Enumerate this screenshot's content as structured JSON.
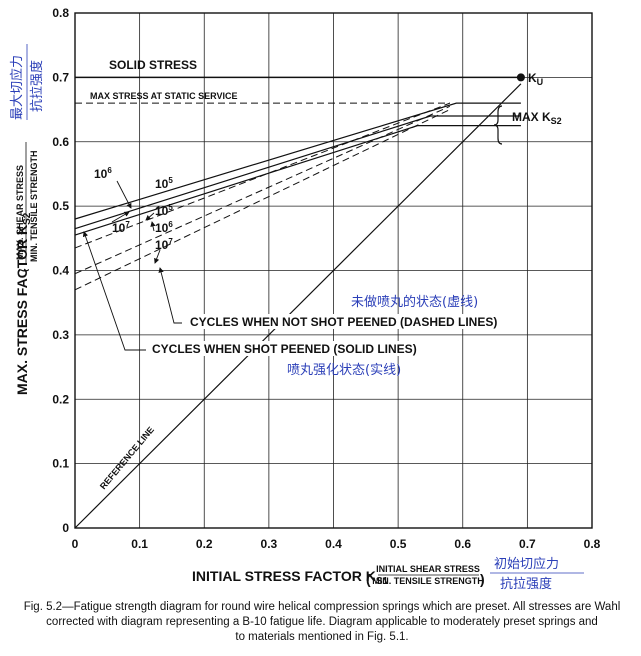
{
  "chart_data": {
    "type": "line",
    "title": "",
    "xlabel": "INITIAL STRESS FACTOR K",
    "xlabel_sub": "S1",
    "xlabel_frac_top": "INITIAL SHEAR STRESS",
    "xlabel_frac_bottom": "MIN. TENSILE STRENGTH",
    "ylabel": "MAX. STRESS FACTOR K",
    "ylabel_sub": "S2",
    "ylabel_frac_top": "MAX. SHEAR STRESS",
    "ylabel_frac_bottom": "MIN. TENSILE STRENGTH",
    "xlim": [
      0,
      0.8
    ],
    "ylim": [
      0,
      0.8
    ],
    "x_ticks": [
      "0",
      "0.1",
      "0.2",
      "0.3",
      "0.4",
      "0.5",
      "0.6",
      "0.7",
      "0.8"
    ],
    "y_ticks": [
      "0",
      "0.1",
      "0.2",
      "0.3",
      "0.4",
      "0.5",
      "0.6",
      "0.7",
      "0.8"
    ],
    "grid": true,
    "solid_stress": 0.7,
    "static_service_stress": 0.66,
    "ku_point": {
      "x": 0.69,
      "y": 0.7
    },
    "series": [
      {
        "name": "10^5 shot peened",
        "style": "solid",
        "x": [
          0,
          0.59,
          0.69
        ],
        "y": [
          0.48,
          0.66,
          0.66
        ]
      },
      {
        "name": "10^6 shot peened",
        "style": "solid",
        "x": [
          0,
          0.55,
          0.69
        ],
        "y": [
          0.465,
          0.64,
          0.64
        ]
      },
      {
        "name": "10^7 shot peened",
        "style": "solid",
        "x": [
          0,
          0.53,
          0.69
        ],
        "y": [
          0.455,
          0.625,
          0.625
        ]
      },
      {
        "name": "10^5 not shot peened",
        "style": "dashed",
        "x": [
          0,
          0.58
        ],
        "y": [
          0.435,
          0.66
        ]
      },
      {
        "name": "10^6 not shot peened",
        "style": "dashed",
        "x": [
          0,
          0.58
        ],
        "y": [
          0.395,
          0.655
        ]
      },
      {
        "name": "10^7 not shot peened",
        "style": "dashed",
        "x": [
          0,
          0.58
        ],
        "y": [
          0.37,
          0.65
        ]
      },
      {
        "name": "REFERENCE LINE",
        "style": "solid",
        "x": [
          0,
          0.69
        ],
        "y": [
          0,
          0.69
        ]
      }
    ],
    "annotations": {
      "solid_stress": "SOLID STRESS",
      "static_service": "MAX STRESS AT STATIC SERVICE",
      "ku": "K",
      "ku_sub": "U",
      "max_ks2": "MAX K",
      "max_ks2_sub": "S2",
      "exp_1e6_solid": "10",
      "exp_1e6_solid_sup": "6",
      "exp_1e5_solid": "10",
      "exp_1e5_solid_sup": "5",
      "exp_1e5_dashed": "10",
      "exp_1e5_dashed_sup": "5",
      "exp_1e7_solid": "10",
      "exp_1e7_solid_sup": "7",
      "exp_1e6_dashed": "10",
      "exp_1e6_dashed_sup": "6",
      "exp_1e7_dashed": "10",
      "exp_1e7_dashed_sup": "7",
      "not_peened": "CYCLES WHEN NOT SHOT PEENED (DASHED LINES)",
      "peened": "CYCLES WHEN SHOT PEENED (SOLID LINES)",
      "reference_line": "REFERENCE LINE"
    },
    "chinese_notes": {
      "max_shear_top": "最大切应力",
      "max_shear_bottom": "抗拉强度",
      "not_peened": "未做喷丸的状态(虚线)",
      "peened": "喷丸强化状态(实线)",
      "initial_shear_top": "初始切应力",
      "initial_shear_bottom": "抗拉强度"
    }
  },
  "caption": {
    "line1": "Fig. 5.2—Fatigue strength diagram for round wire helical compression springs which are preset.  All stresses are Wahl",
    "line2": "corrected with diagram representing a B-10 fatigue life.  Diagram applicable to moderately preset springs and",
    "line3": "to materials mentioned in Fig. 5.1."
  }
}
